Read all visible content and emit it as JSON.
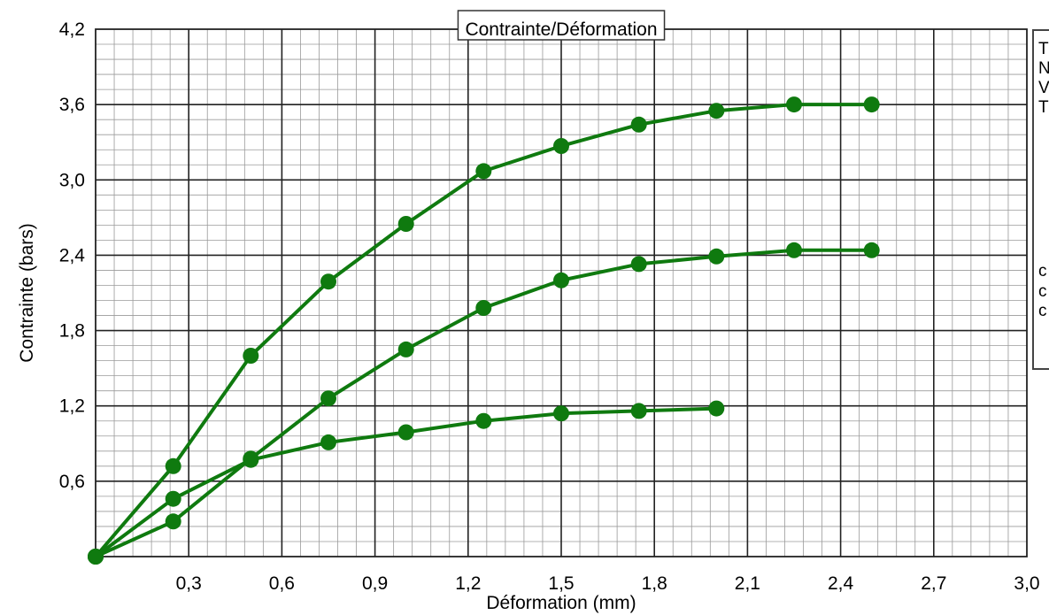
{
  "chart_data": {
    "type": "line",
    "title": "Contrainte/Déformation",
    "xlabel": "Déformation (mm)",
    "ylabel": "Contrainte (bars)",
    "xlim": [
      0,
      3.0
    ],
    "ylim": [
      0,
      4.2
    ],
    "x_ticks": [
      "0,3",
      "0,6",
      "0,9",
      "1,2",
      "1,5",
      "1,8",
      "2,1",
      "2,4",
      "2,7",
      "3,0"
    ],
    "y_ticks": [
      "0,6",
      "1,2",
      "1,8",
      "2,4",
      "3,0",
      "3,6",
      "4,2"
    ],
    "grid": true,
    "colors": {
      "series": "#0f7a0f",
      "grid_major": "#222222",
      "grid_minor": "#9a9a9a"
    },
    "series": [
      {
        "x": [
          0,
          0.25,
          0.5,
          0.75,
          1.0,
          1.25,
          1.5,
          1.75,
          2.0,
          2.25,
          2.5
        ],
        "y": [
          0,
          0.72,
          1.6,
          2.19,
          2.65,
          3.07,
          3.27,
          3.44,
          3.55,
          3.6,
          3.6
        ]
      },
      {
        "x": [
          0,
          0.25,
          0.5,
          0.75,
          1.0,
          1.25,
          1.5,
          1.75,
          2.0,
          2.25,
          2.5
        ],
        "y": [
          0,
          0.28,
          0.78,
          1.26,
          1.65,
          1.98,
          2.2,
          2.33,
          2.39,
          2.44,
          2.44
        ]
      },
      {
        "x": [
          0,
          0.25,
          0.5,
          0.75,
          1.0,
          1.25,
          1.5,
          1.75,
          2.0
        ],
        "y": [
          0,
          0.46,
          0.77,
          0.91,
          0.99,
          1.08,
          1.14,
          1.16,
          1.18
        ]
      }
    ]
  },
  "side_panel": {
    "lines": [
      "T",
      "N",
      "V",
      "T",
      "c",
      "c",
      "c"
    ]
  }
}
